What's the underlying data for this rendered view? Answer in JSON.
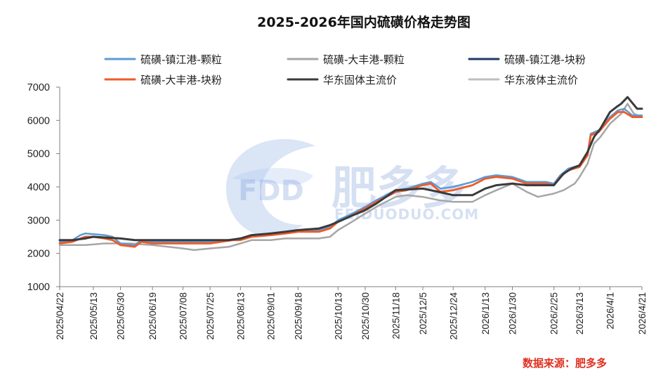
{
  "chart_data": {
    "type": "line",
    "title": "2025-2026年国内硫磺价格走势图",
    "source": "数据来源：肥多多",
    "watermark": {
      "logo": "FDD",
      "name": "肥多多",
      "url": "FEIDUODUO.COM"
    },
    "ylim": [
      1000,
      7000
    ],
    "yticks": [
      1000,
      2000,
      3000,
      4000,
      5000,
      6000,
      7000
    ],
    "xlim": [
      "2025-04-22",
      "2026-04-21"
    ],
    "xticks": [
      {
        "date": "2025-04-22",
        "label": "2025/04/22"
      },
      {
        "date": "2025-05-13",
        "label": "2025/05/13"
      },
      {
        "date": "2025-05-30",
        "label": "2025/05/30"
      },
      {
        "date": "2025-06-19",
        "label": "2025/06/19"
      },
      {
        "date": "2025-07-08",
        "label": "2025/07/08"
      },
      {
        "date": "2025-07-25",
        "label": "2025/07/25"
      },
      {
        "date": "2025-08-13",
        "label": "2025/08/13"
      },
      {
        "date": "2025-09-01",
        "label": "2025/09/01"
      },
      {
        "date": "2025-09-18",
        "label": "2025/09/18"
      },
      {
        "date": "2025-10-13",
        "label": "2025/10/13"
      },
      {
        "date": "2025-10-30",
        "label": "2025/10/30"
      },
      {
        "date": "2025-11-18",
        "label": "2025/11/18"
      },
      {
        "date": "2025-12-05",
        "label": "2025/12/5"
      },
      {
        "date": "2025-12-24",
        "label": "2025/12/24"
      },
      {
        "date": "2026-01-13",
        "label": "2026/1/13"
      },
      {
        "date": "2026-01-30",
        "label": "2026/1/30"
      },
      {
        "date": "2026-02-25",
        "label": "2026/2/25"
      },
      {
        "date": "2026-03-13",
        "label": "2026/3/13"
      },
      {
        "date": "2026-04-01",
        "label": "2026/4/1"
      },
      {
        "date": "2026-04-21",
        "label": "2026/4/21"
      }
    ],
    "legend_placement": "top",
    "grid": false,
    "series": [
      {
        "name": "硫磺-镇江港-颗粒",
        "color": "#5b9bd5",
        "width": 2.5,
        "z": 2,
        "x": [
          "2025-04-22",
          "2025-04-30",
          "2025-05-05",
          "2025-05-08",
          "2025-05-13",
          "2025-05-20",
          "2025-05-25",
          "2025-05-30",
          "2025-06-08",
          "2025-06-12",
          "2025-06-19",
          "2025-06-24",
          "2025-07-01",
          "2025-07-08",
          "2025-07-15",
          "2025-07-25",
          "2025-08-01",
          "2025-08-08",
          "2025-08-13",
          "2025-08-20",
          "2025-09-01",
          "2025-09-10",
          "2025-09-18",
          "2025-09-25",
          "2025-10-01",
          "2025-10-08",
          "2025-10-13",
          "2025-10-20",
          "2025-10-30",
          "2025-11-06",
          "2025-11-12",
          "2025-11-18",
          "2025-11-25",
          "2025-12-05",
          "2025-12-10",
          "2025-12-16",
          "2025-12-24",
          "2026-01-05",
          "2026-01-13",
          "2026-01-20",
          "2026-01-30",
          "2026-02-08",
          "2026-02-20",
          "2026-02-25",
          "2026-03-01",
          "2026-03-06",
          "2026-03-13",
          "2026-03-18",
          "2026-03-20",
          "2026-03-25",
          "2026-04-01",
          "2026-04-06",
          "2026-04-10",
          "2026-04-15",
          "2026-04-21"
        ],
        "y": [
          2350,
          2400,
          2550,
          2600,
          2580,
          2550,
          2500,
          2300,
          2250,
          2400,
          2350,
          2350,
          2350,
          2350,
          2350,
          2350,
          2380,
          2420,
          2450,
          2550,
          2600,
          2650,
          2700,
          2700,
          2700,
          2800,
          3000,
          3150,
          3400,
          3600,
          3750,
          3900,
          3950,
          4100,
          4150,
          3950,
          4000,
          4150,
          4300,
          4350,
          4300,
          4150,
          4150,
          4100,
          4350,
          4550,
          4650,
          5000,
          5600,
          5700,
          6100,
          6300,
          6350,
          6150,
          6150
        ]
      },
      {
        "name": "硫磺-大丰港-颗粒",
        "color": "#a6a6a6",
        "width": 2.5,
        "z": 1,
        "x": [
          "2025-04-22",
          "2025-05-08",
          "2025-05-20",
          "2025-06-05",
          "2025-06-19",
          "2025-07-08",
          "2025-07-15",
          "2025-07-25",
          "2025-08-06",
          "2025-08-13",
          "2025-08-20",
          "2025-09-01",
          "2025-09-10",
          "2025-09-18",
          "2025-10-01",
          "2025-10-08",
          "2025-10-13",
          "2025-10-20",
          "2025-10-30",
          "2025-11-06",
          "2025-11-12",
          "2025-11-18",
          "2025-11-25",
          "2025-12-05",
          "2025-12-15",
          "2025-12-24",
          "2026-01-05",
          "2026-01-13",
          "2026-01-20",
          "2026-01-30",
          "2026-02-08",
          "2026-02-15",
          "2026-02-25",
          "2026-03-03",
          "2026-03-10",
          "2026-03-13",
          "2026-03-18",
          "2026-03-22",
          "2026-03-26",
          "2026-04-01",
          "2026-04-08",
          "2026-04-12",
          "2026-04-16",
          "2026-04-21"
        ],
        "y": [
          2250,
          2250,
          2300,
          2300,
          2250,
          2150,
          2100,
          2150,
          2200,
          2300,
          2400,
          2400,
          2450,
          2450,
          2450,
          2500,
          2700,
          2900,
          3200,
          3400,
          3550,
          3700,
          3750,
          3700,
          3600,
          3550,
          3550,
          3750,
          3900,
          4100,
          3850,
          3700,
          3800,
          3900,
          4100,
          4300,
          4700,
          5300,
          5500,
          5900,
          6200,
          6500,
          6200,
          6100
        ]
      },
      {
        "name": "硫磺-镇江港-块粉",
        "color": "#1f3864",
        "width": 2.5,
        "z": 3,
        "x": [
          "2025-04-22",
          "2026-04-21"
        ],
        "y": [
          null,
          null
        ]
      },
      {
        "name": "硫磺-大丰港-块粉",
        "color": "#f05a28",
        "width": 2.8,
        "z": 4,
        "x": [
          "2025-04-22",
          "2025-04-30",
          "2025-05-05",
          "2025-05-08",
          "2025-05-13",
          "2025-05-20",
          "2025-05-25",
          "2025-05-30",
          "2025-06-08",
          "2025-06-12",
          "2025-06-19",
          "2025-06-24",
          "2025-07-01",
          "2025-07-08",
          "2025-07-15",
          "2025-07-25",
          "2025-08-01",
          "2025-08-08",
          "2025-08-13",
          "2025-08-20",
          "2025-09-01",
          "2025-09-10",
          "2025-09-18",
          "2025-09-25",
          "2025-10-01",
          "2025-10-08",
          "2025-10-13",
          "2025-10-20",
          "2025-10-30",
          "2025-11-06",
          "2025-11-12",
          "2025-11-18",
          "2025-11-25",
          "2025-12-05",
          "2025-12-10",
          "2025-12-16",
          "2025-12-24",
          "2026-01-05",
          "2026-01-13",
          "2026-01-20",
          "2026-01-30",
          "2026-02-08",
          "2026-02-20",
          "2026-02-25",
          "2026-03-01",
          "2026-03-06",
          "2026-03-13",
          "2026-03-18",
          "2026-03-20",
          "2026-03-25",
          "2026-04-01",
          "2026-04-06",
          "2026-04-10",
          "2026-04-15",
          "2026-04-21"
        ],
        "y": [
          2300,
          2350,
          2450,
          2500,
          2500,
          2450,
          2400,
          2250,
          2200,
          2350,
          2300,
          2300,
          2300,
          2300,
          2300,
          2300,
          2350,
          2400,
          2400,
          2500,
          2550,
          2600,
          2650,
          2650,
          2650,
          2750,
          2950,
          3100,
          3350,
          3550,
          3700,
          3850,
          3900,
          4050,
          4100,
          3850,
          3900,
          4050,
          4250,
          4300,
          4250,
          4100,
          4100,
          4050,
          4300,
          4500,
          4600,
          4950,
          5550,
          5650,
          6050,
          6250,
          6250,
          6100,
          6100
        ]
      },
      {
        "name": "华东固体主流价",
        "color": "#3a3a3a",
        "width": 3,
        "z": 5,
        "x": [
          "2025-04-22",
          "2025-04-30",
          "2025-05-08",
          "2025-05-13",
          "2025-05-30",
          "2025-06-08",
          "2025-06-30",
          "2025-07-08",
          "2025-07-25",
          "2025-08-06",
          "2025-08-13",
          "2025-08-20",
          "2025-09-01",
          "2025-09-10",
          "2025-09-18",
          "2025-10-01",
          "2025-10-08",
          "2025-10-13",
          "2025-10-20",
          "2025-10-30",
          "2025-11-06",
          "2025-11-12",
          "2025-11-18",
          "2025-12-05",
          "2025-12-15",
          "2025-12-24",
          "2026-01-05",
          "2026-01-13",
          "2026-01-20",
          "2026-01-30",
          "2026-02-08",
          "2026-02-25",
          "2026-03-03",
          "2026-03-08",
          "2026-03-13",
          "2026-03-18",
          "2026-03-22",
          "2026-03-26",
          "2026-04-01",
          "2026-04-05",
          "2026-04-08",
          "2026-04-12",
          "2026-04-18",
          "2026-04-21"
        ],
        "y": [
          2400,
          2400,
          2450,
          2500,
          2450,
          2400,
          2400,
          2400,
          2400,
          2400,
          2450,
          2550,
          2600,
          2650,
          2700,
          2750,
          2850,
          2950,
          3100,
          3300,
          3500,
          3700,
          3900,
          3950,
          3850,
          3750,
          3750,
          3950,
          4050,
          4100,
          4050,
          4050,
          4400,
          4550,
          4650,
          5050,
          5500,
          5750,
          6250,
          6400,
          6500,
          6700,
          6350,
          6350
        ]
      },
      {
        "name": "华东液体主流价",
        "color": "#bfbfbf",
        "width": 2.5,
        "z": 0,
        "x": [
          "2025-04-22",
          "2026-04-21"
        ],
        "y": [
          null,
          null
        ]
      }
    ]
  }
}
